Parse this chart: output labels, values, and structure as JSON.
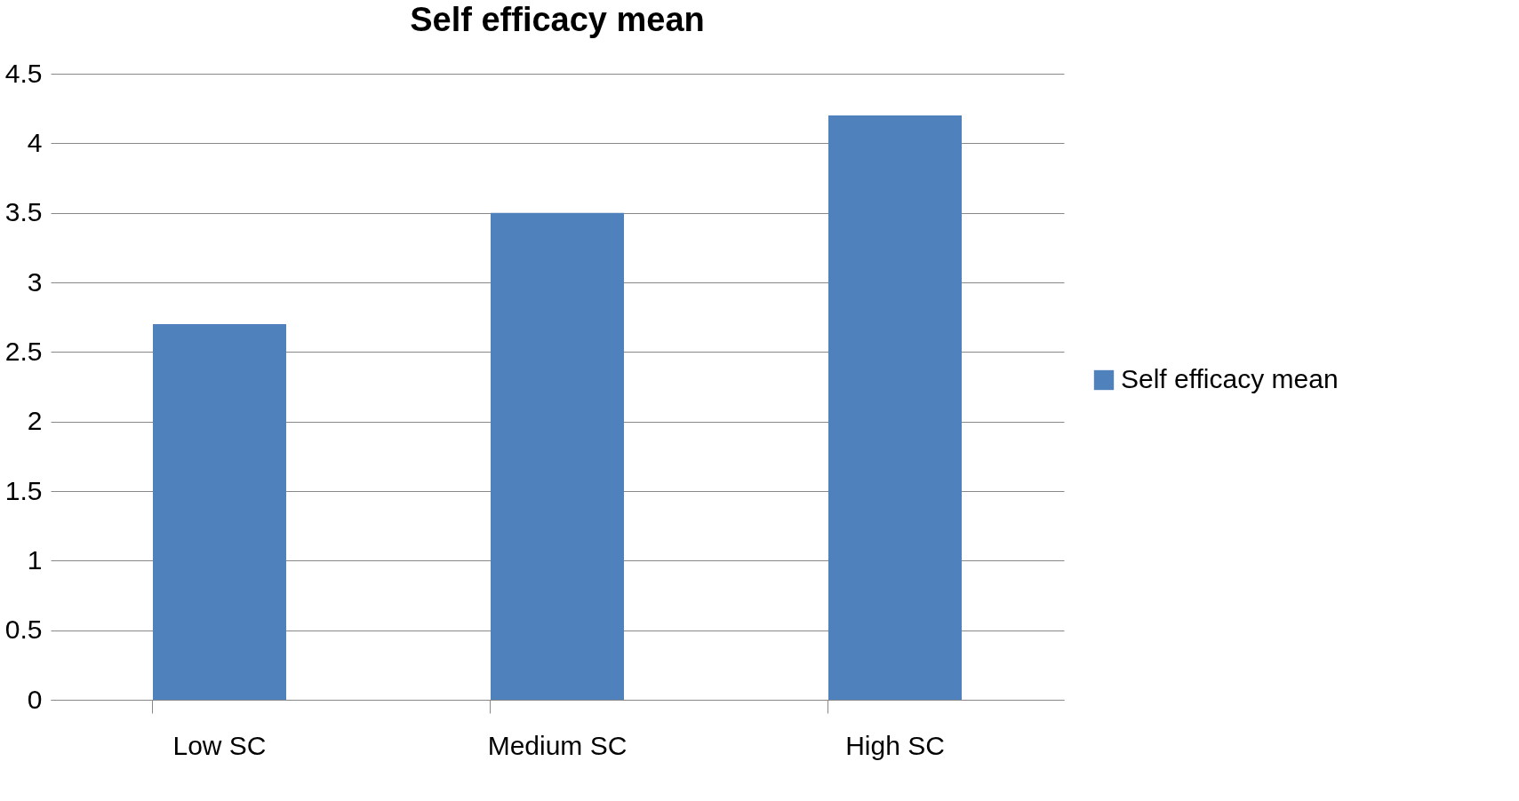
{
  "chart_data": {
    "type": "bar",
    "title": "Self efficacy mean",
    "categories": [
      "Low SC",
      "Medium SC",
      "High SC"
    ],
    "series": [
      {
        "name": "Self efficacy mean",
        "color": "#4f81bd",
        "values": [
          2.7,
          3.5,
          4.2
        ]
      }
    ],
    "ylim": [
      0,
      4.5
    ],
    "yticks": [
      0,
      0.5,
      1,
      1.5,
      2,
      2.5,
      3,
      3.5,
      4,
      4.5
    ],
    "grid": "y",
    "legend": "right"
  }
}
